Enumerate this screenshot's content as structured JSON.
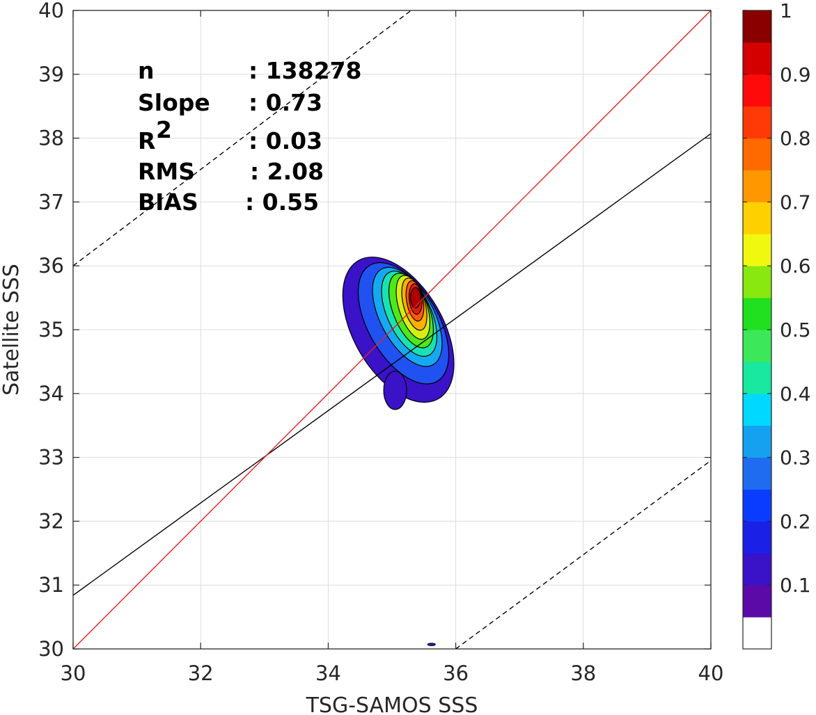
{
  "chart_data": {
    "type": "scatter",
    "title": "",
    "xlabel": "TSG-SAMOS SSS",
    "ylabel": "Satellite SSS",
    "xlim": [
      30,
      40
    ],
    "ylim": [
      30,
      40
    ],
    "xticks": [
      "30",
      "32",
      "34",
      "36",
      "38",
      "40"
    ],
    "yticks": [
      "30",
      "31",
      "32",
      "33",
      "34",
      "35",
      "36",
      "37",
      "38",
      "39",
      "40"
    ],
    "grid": true,
    "stats": [
      {
        "label": "n",
        "value": ": 138278"
      },
      {
        "label": "Slope",
        "value": ": 0.73"
      },
      {
        "label": "R",
        "sup": "2",
        "value": ": 0.03"
      },
      {
        "label": "RMS",
        "value": ": 2.08"
      },
      {
        "label": "BIAS",
        "value": ": 0.55"
      }
    ],
    "lines": {
      "one_to_one": {
        "x": [
          30,
          40
        ],
        "y": [
          30,
          40
        ],
        "color": "#e8211b"
      },
      "regression": {
        "x": [
          30,
          40
        ],
        "y": [
          30.84,
          38.07
        ],
        "color": "#000000"
      },
      "upper_bound": {
        "x": [
          30,
          35.3
        ],
        "y": [
          36.0,
          40.0
        ],
        "color": "#000000",
        "dash": true
      },
      "lower_bound": {
        "x": [
          36.0,
          40
        ],
        "y": [
          30.0,
          32.95
        ],
        "color": "#000000",
        "dash": true
      }
    },
    "density_contours": {
      "levels": [
        0.05,
        0.15,
        0.25,
        0.35,
        0.45,
        0.55,
        0.65,
        0.75,
        0.85,
        0.95
      ],
      "fills": [
        "#3a12c8",
        "#1f52f0",
        "#15a9f0",
        "#18e2b4",
        "#4fe81a",
        "#d6ee10",
        "#ffb000",
        "#ff5a06",
        "#e01d06",
        "#b00000"
      ],
      "rings": [
        {
          "level": 0.05,
          "cx": 35.1,
          "cy": 35.0,
          "rx": 0.7,
          "ry": 1.25,
          "rot": -30
        },
        {
          "level": 0.15,
          "cx": 35.18,
          "cy": 35.1,
          "rx": 0.55,
          "ry": 1.05,
          "rot": -30
        },
        {
          "level": 0.25,
          "cx": 35.24,
          "cy": 35.2,
          "rx": 0.42,
          "ry": 0.85,
          "rot": -28
        },
        {
          "level": 0.35,
          "cx": 35.27,
          "cy": 35.25,
          "rx": 0.34,
          "ry": 0.72,
          "rot": -25
        },
        {
          "level": 0.45,
          "cx": 35.3,
          "cy": 35.3,
          "rx": 0.28,
          "ry": 0.62,
          "rot": -22
        },
        {
          "level": 0.55,
          "cx": 35.33,
          "cy": 35.35,
          "rx": 0.22,
          "ry": 0.52,
          "rot": -18
        },
        {
          "level": 0.65,
          "cx": 35.35,
          "cy": 35.4,
          "rx": 0.17,
          "ry": 0.42,
          "rot": -15
        },
        {
          "level": 0.75,
          "cx": 35.36,
          "cy": 35.45,
          "rx": 0.13,
          "ry": 0.32,
          "rot": -10
        },
        {
          "level": 0.85,
          "cx": 35.37,
          "cy": 35.48,
          "rx": 0.1,
          "ry": 0.24,
          "rot": -5
        },
        {
          "level": 0.95,
          "cx": 35.37,
          "cy": 35.5,
          "rx": 0.08,
          "ry": 0.16,
          "rot": 0
        }
      ]
    },
    "colorbar": {
      "ticks": [
        "0.1",
        "0.2",
        "0.3",
        "0.4",
        "0.5",
        "0.6",
        "0.7",
        "0.8",
        "0.9",
        "1"
      ],
      "colors": [
        "#ffffff",
        "#5b0aa8",
        "#3a12c8",
        "#1a20e6",
        "#0a3cff",
        "#1f6cf0",
        "#15a0f0",
        "#00d8ff",
        "#18e8a0",
        "#3ce85a",
        "#20e020",
        "#88e810",
        "#f0f810",
        "#ffd000",
        "#ff9800",
        "#ff6a00",
        "#ff3a06",
        "#ff0a0a",
        "#d40000",
        "#8a0000"
      ]
    }
  }
}
